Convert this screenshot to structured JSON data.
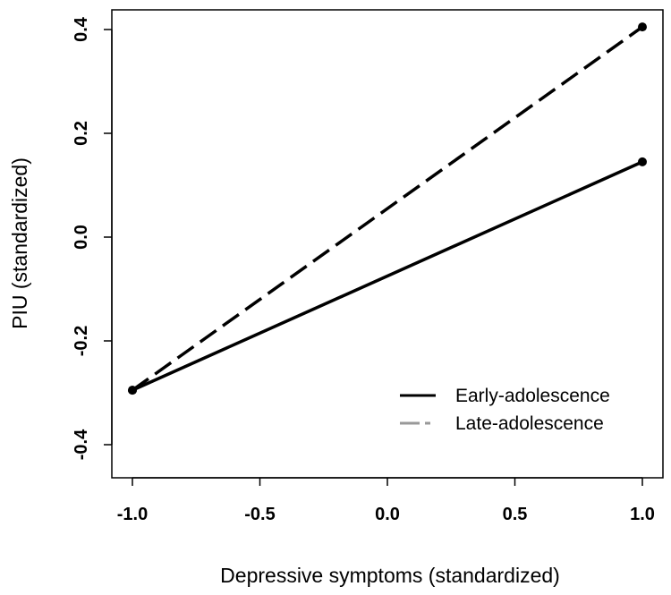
{
  "chart_data": {
    "type": "line",
    "title": "",
    "xlabel": "Depressive symptoms (standardized)",
    "ylabel": "PIU (standardized)",
    "xlim": [
      -1.0,
      1.0
    ],
    "ylim": [
      -0.4,
      0.4
    ],
    "x_ticks": [
      -1.0,
      -0.5,
      0.0,
      0.5,
      1.0
    ],
    "x_tick_labels": [
      "-1.0",
      "-0.5",
      "0.0",
      "0.5",
      "1.0"
    ],
    "y_ticks": [
      -0.4,
      -0.2,
      0.0,
      0.2,
      0.4
    ],
    "y_tick_labels": [
      "-0.4",
      "-0.2",
      "0.0",
      "0.2",
      "0.4"
    ],
    "grid": false,
    "legend_position": "bottom-right",
    "series": [
      {
        "name": "Early-adolescence",
        "style": "solid",
        "legend_color": "#000000",
        "x": [
          -1.0,
          1.0
        ],
        "y": [
          -0.295,
          0.145
        ]
      },
      {
        "name": "Late-adolescence",
        "style": "dashed",
        "legend_color": "#999999",
        "x": [
          -1.0,
          1.0
        ],
        "y": [
          -0.295,
          0.405
        ]
      }
    ]
  }
}
